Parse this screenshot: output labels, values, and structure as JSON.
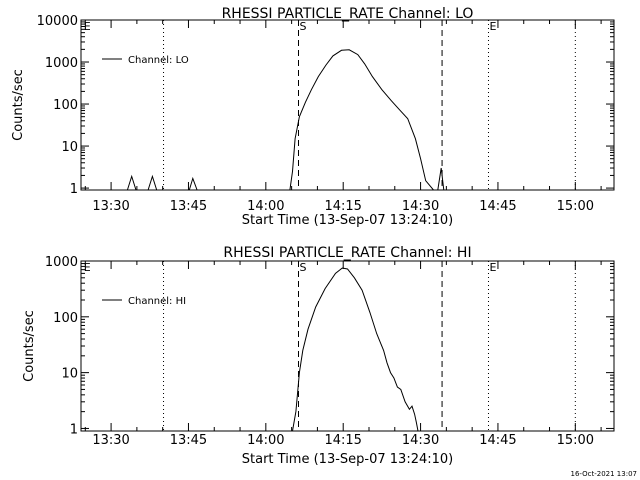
{
  "timestamp": "16-Oct-2021 13:07",
  "chart_data": [
    {
      "type": "line",
      "title": "RHESSI PARTICLE_RATE Channel: LO",
      "xlabel": "Start Time (13-Sep-07 13:24:10)",
      "ylabel": "Counts/sec",
      "y_scale": "log",
      "ylim": [
        0.9,
        10000
      ],
      "xlim": [
        "13:24:10",
        "15:07:30"
      ],
      "x_tick_labels": [
        "13:30",
        "13:45",
        "14:00",
        "14:15",
        "14:30",
        "14:45",
        "15:00"
      ],
      "y_tick_labels": [
        "1",
        "10",
        "100",
        "1000",
        "10000"
      ],
      "legend_position": "top-left",
      "legend": [
        "Channel: LO"
      ],
      "markers": [
        {
          "label": "S",
          "time": "14:06:20",
          "style": "dashed"
        },
        {
          "label": "",
          "time": "14:34:10",
          "style": "dashed"
        },
        {
          "label": "",
          "time": "13:40:10",
          "style": "dotted"
        },
        {
          "label": "E",
          "time": "14:43:10",
          "style": "dotted"
        },
        {
          "label": "",
          "time": "15:00:00",
          "style": "dotted"
        },
        {
          "label": "E",
          "time": "13:24:30",
          "style": "none"
        }
      ],
      "series": [
        {
          "name": "Channel: LO",
          "x": [
            "13:30:40",
            "13:33:10",
            "13:34:00",
            "13:34:50",
            "13:37:10",
            "13:38:00",
            "13:38:50",
            "13:45:10",
            "13:45:50",
            "13:46:40",
            "14:04:40",
            "14:05:10",
            "14:05:40",
            "14:06:30",
            "14:07:40",
            "14:08:50",
            "14:10:10",
            "14:11:40",
            "14:13:00",
            "14:14:40",
            "14:16:10",
            "14:17:50",
            "14:19:10",
            "14:20:40",
            "14:22:30",
            "14:24:20",
            "14:25:50",
            "14:27:30",
            "14:29:00",
            "14:30:00",
            "14:31:00",
            "14:32:30",
            "14:33:20",
            "14:34:00",
            "14:34:30",
            "14:35:00"
          ],
          "y": [
            0.9,
            0.9,
            1.9,
            0.9,
            0.9,
            1.9,
            0.9,
            0.9,
            1.7,
            0.9,
            0.9,
            2.5,
            15,
            50,
            110,
            220,
            450,
            850,
            1400,
            1900,
            1950,
            1500,
            900,
            450,
            220,
            120,
            75,
            45,
            15,
            5,
            1.5,
            0.9,
            0.9,
            3,
            0.9,
            0.9
          ]
        }
      ]
    },
    {
      "type": "line",
      "title": "RHESSI PARTICLE_RATE Channel: HI",
      "xlabel": "Start Time (13-Sep-07 13:24:10)",
      "ylabel": "Counts/sec",
      "y_scale": "log",
      "ylim": [
        0.9,
        1000
      ],
      "xlim": [
        "13:24:10",
        "15:07:30"
      ],
      "x_tick_labels": [
        "13:30",
        "13:45",
        "14:00",
        "14:15",
        "14:30",
        "14:45",
        "15:00"
      ],
      "y_tick_labels": [
        "1",
        "10",
        "100",
        "1000"
      ],
      "legend_position": "top-left",
      "legend": [
        "Channel: HI"
      ],
      "markers": [
        {
          "label": "S",
          "time": "14:06:20",
          "style": "dashed"
        },
        {
          "label": "",
          "time": "14:34:10",
          "style": "dashed"
        },
        {
          "label": "",
          "time": "13:40:10",
          "style": "dotted"
        },
        {
          "label": "E",
          "time": "14:43:10",
          "style": "dotted"
        },
        {
          "label": "",
          "time": "15:00:00",
          "style": "dotted"
        },
        {
          "label": "E",
          "time": "13:24:30",
          "style": "none"
        }
      ],
      "series": [
        {
          "name": "Channel: HI",
          "x": [
            "14:05:10",
            "14:05:50",
            "14:06:30",
            "14:07:10",
            "14:08:10",
            "14:09:40",
            "14:11:30",
            "14:13:30",
            "14:14:50",
            "14:15:50",
            "14:17:10",
            "14:18:40",
            "14:20:10",
            "14:21:30",
            "14:22:50",
            "14:23:30",
            "14:24:10",
            "14:24:50",
            "14:25:30",
            "14:26:10",
            "14:27:00",
            "14:27:50",
            "14:28:20",
            "14:28:50",
            "14:29:10",
            "14:29:30"
          ],
          "y": [
            0.9,
            2,
            10,
            25,
            60,
            150,
            320,
            600,
            750,
            720,
            500,
            300,
            120,
            50,
            25,
            15,
            10,
            8,
            5.5,
            5,
            3,
            2.2,
            2.5,
            1.8,
            1.3,
            0.9
          ]
        }
      ]
    }
  ]
}
